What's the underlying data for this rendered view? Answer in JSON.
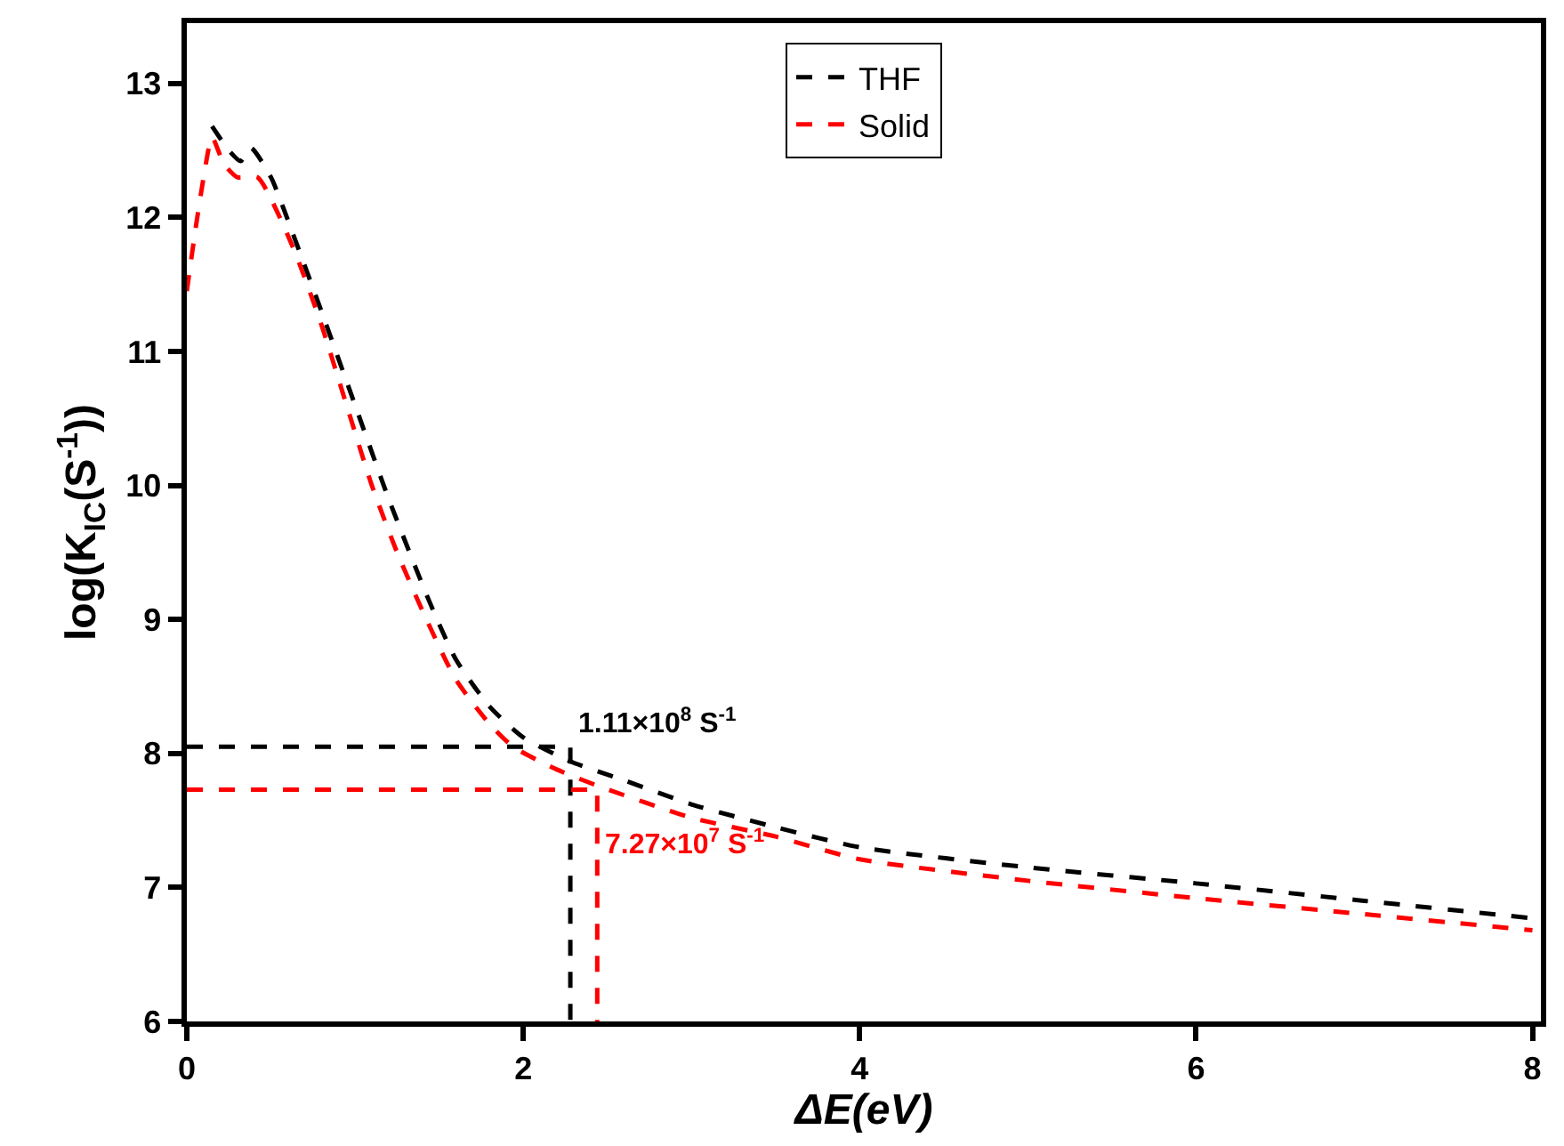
{
  "chart_data": {
    "type": "line",
    "xlabel": "ΔE(eV)",
    "ylabel": "log(K$_{IC}$(S$^{-1}$))",
    "xlim": [
      0,
      8.05
    ],
    "ylim": [
      6,
      13.45
    ],
    "xticks": [
      0,
      2,
      4,
      6,
      8
    ],
    "yticks": [
      6,
      7,
      8,
      9,
      10,
      11,
      12,
      13
    ],
    "legend": "top",
    "marker": "none",
    "line_style": "dashed",
    "series": [
      {
        "name": "THF",
        "color": "#000000",
        "x": [
          0.15,
          0.25,
          0.32,
          0.38,
          0.5,
          0.63,
          0.8,
          1.0,
          1.2,
          1.44,
          1.6,
          1.8,
          2.0,
          2.28,
          2.6,
          3,
          3.5,
          4,
          5,
          6,
          7,
          8
        ],
        "values": [
          12.68,
          12.5,
          12.42,
          12.52,
          12.3,
          11.88,
          11.3,
          10.6,
          9.9,
          9.14,
          8.7,
          8.35,
          8.12,
          7.94,
          7.8,
          7.62,
          7.45,
          7.3,
          7.15,
          7.03,
          6.9,
          6.77
        ]
      },
      {
        "name": "Solid",
        "color": "#ff0000",
        "x": [
          0,
          0.05,
          0.1,
          0.15,
          0.22,
          0.3,
          0.42,
          0.63,
          0.8,
          0.91,
          1.1,
          1.25,
          1.41,
          1.6,
          1.8,
          1.94,
          2.2,
          2.44,
          3,
          3.5,
          4,
          5,
          6,
          7,
          8
        ],
        "values": [
          11.45,
          11.9,
          12.3,
          12.6,
          12.4,
          12.3,
          12.3,
          11.78,
          11.2,
          10.76,
          10.0,
          9.5,
          9.04,
          8.55,
          8.22,
          8.05,
          7.88,
          7.76,
          7.52,
          7.38,
          7.21,
          7.05,
          6.92,
          6.8,
          6.68
        ]
      },
      {
        "color": "#000000",
        "x": [
          0,
          2.28,
          2.28
        ],
        "values": [
          8.05,
          8.05,
          6
        ]
      },
      {
        "color": "#ff0000",
        "x": [
          0,
          2.44,
          2.44
        ],
        "values": [
          7.73,
          7.73,
          6
        ]
      }
    ],
    "annotations": [
      "1.11×10$^{8}$ S$^{-1}$",
      "7.27×10$^{7}$ S$^{-1}$"
    ]
  }
}
